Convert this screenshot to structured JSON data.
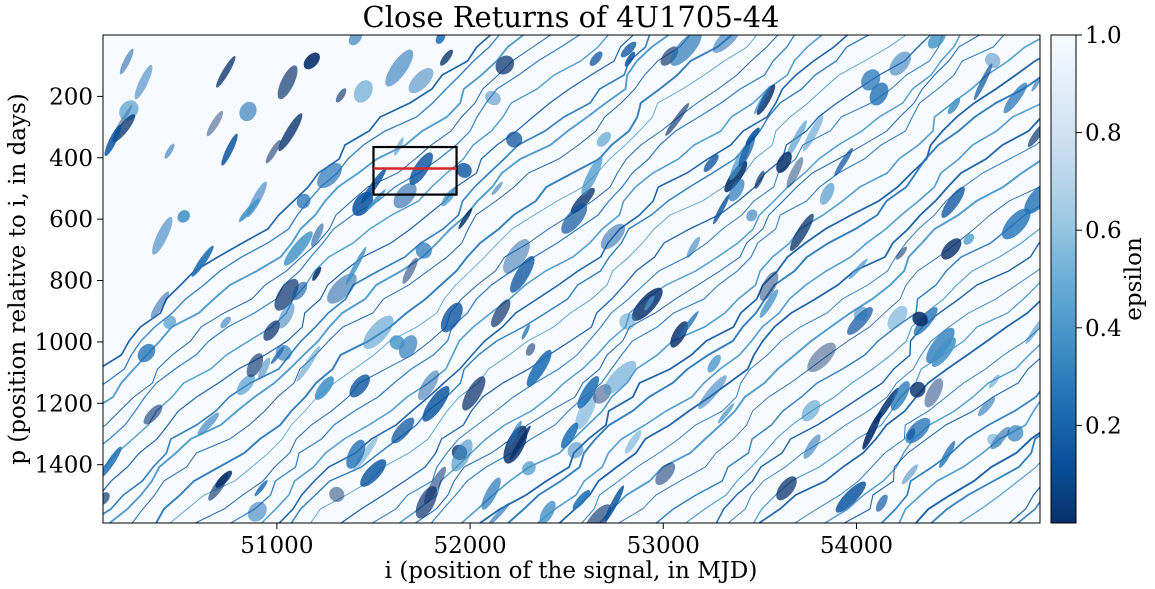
{
  "chart_data": {
    "type": "heatmap",
    "title": "Close Returns of 4U1705-44",
    "xlabel": "i (position of the signal, in MJD)",
    "ylabel": "p (position relative to i, in days)",
    "xlim": [
      50100,
      54950
    ],
    "ylim": [
      1590,
      0
    ],
    "x_ticks": [
      51000,
      52000,
      53000,
      54000
    ],
    "y_ticks": [
      200,
      400,
      600,
      800,
      1000,
      1200,
      1400
    ],
    "colorbar": {
      "label": "epsilon",
      "range": [
        0.0,
        1.0
      ],
      "ticks": [
        0.2,
        0.4,
        0.6,
        0.8,
        1.0
      ],
      "tick_labels": [
        "0.2",
        "0.4",
        "0.6",
        "0.8",
        "1.0"
      ],
      "colormap": "Blues_r",
      "color_low": "#08306b",
      "color_high": "#f7fbff"
    },
    "dominant_value": 1.0,
    "pattern": "diagonal bands of low epsilon (close returns) over a near-white background",
    "band_slope": 0.28,
    "annotations": [
      {
        "type": "rectangle",
        "color": "#000000",
        "x_range": [
          51500,
          51930
        ],
        "y_range": [
          365,
          520
        ]
      },
      {
        "type": "line",
        "color": "#d62728",
        "x_range": [
          51500,
          51930
        ],
        "y": 435
      }
    ]
  },
  "colors": {
    "annotation_box": "#000000",
    "annotation_line": "#d62728"
  }
}
